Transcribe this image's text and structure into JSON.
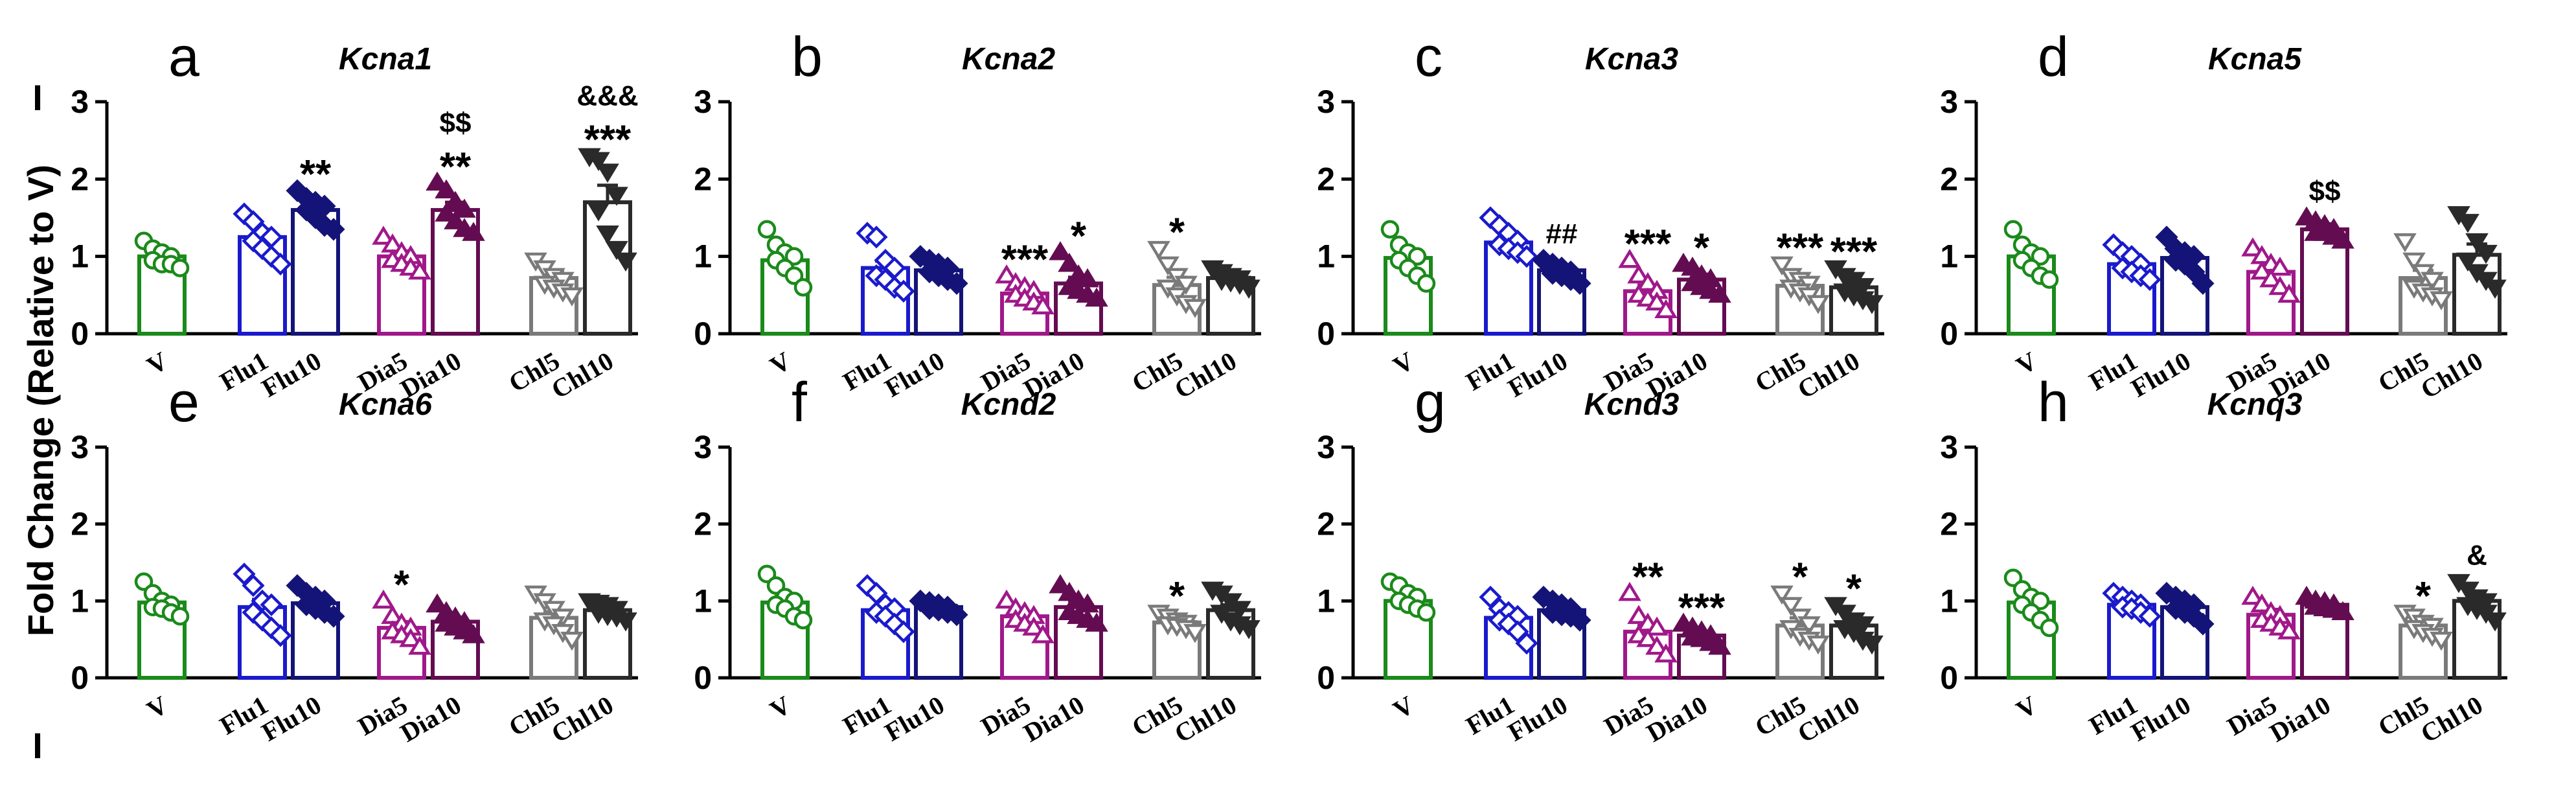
{
  "y_axis_label": "Fold Change (Relative to V)",
  "side_marks": [
    "I",
    "I"
  ],
  "groups": [
    "V",
    "Flu1",
    "Flu10",
    "Dia5",
    "Dia10",
    "Chl5",
    "Chl10"
  ],
  "group_styles": [
    {
      "color": "#1a8a1a",
      "marker": "circle-open"
    },
    {
      "color": "#1a1acc",
      "marker": "diamond-open"
    },
    {
      "color": "#141478",
      "marker": "diamond-filled"
    },
    {
      "color": "#a0188a",
      "marker": "triangle-open"
    },
    {
      "color": "#640c52",
      "marker": "triangle-filled"
    },
    {
      "color": "#7a7a7a",
      "marker": "triangle-down-open"
    },
    {
      "color": "#2a2a2a",
      "marker": "triangle-down-filled"
    }
  ],
  "chart_data": [
    {
      "panel": "a",
      "title": "Kcna1",
      "type": "bar",
      "ylim": [
        0,
        3
      ],
      "yticks": [
        "0",
        "1",
        "2",
        "3"
      ],
      "categories": [
        "V",
        "Flu1",
        "Flu10",
        "Dia5",
        "Dia10",
        "Chl5",
        "Chl10"
      ],
      "values": [
        1.0,
        1.25,
        1.6,
        1.0,
        1.6,
        0.72,
        1.7
      ],
      "sem": [
        0.06,
        0.1,
        0.08,
        0.07,
        0.1,
        0.1,
        0.22
      ],
      "points": [
        [
          1.2,
          1.1,
          1.05,
          1.0,
          0.95,
          0.9,
          0.9,
          0.85
        ],
        [
          1.55,
          1.45,
          1.3,
          1.25,
          1.2,
          1.1,
          1.0,
          0.9
        ],
        [
          1.85,
          1.75,
          1.7,
          1.65,
          1.6,
          1.5,
          1.4,
          1.35
        ],
        [
          1.25,
          1.15,
          1.05,
          1.0,
          0.95,
          0.9,
          0.85,
          0.8
        ],
        [
          1.95,
          1.85,
          1.7,
          1.6,
          1.55,
          1.45,
          1.35,
          1.3
        ],
        [
          0.95,
          0.85,
          0.75,
          0.7,
          0.65,
          0.6,
          0.55,
          0.5
        ],
        [
          2.3,
          2.25,
          2.1,
          1.8,
          1.6,
          1.3,
          1.1,
          0.95
        ]
      ],
      "annotations": [
        {
          "group": 2,
          "lines": [
            "**"
          ]
        },
        {
          "group": 4,
          "lines": [
            "$$",
            "**"
          ]
        },
        {
          "group": 6,
          "lines": [
            "&&&",
            "***"
          ]
        }
      ]
    },
    {
      "panel": "b",
      "title": "Kcna2",
      "type": "bar",
      "ylim": [
        0,
        3
      ],
      "yticks": [
        "0",
        "1",
        "2",
        "3"
      ],
      "categories": [
        "V",
        "Flu1",
        "Flu10",
        "Dia5",
        "Dia10",
        "Chl5",
        "Chl10"
      ],
      "values": [
        0.95,
        0.85,
        0.82,
        0.52,
        0.65,
        0.63,
        0.72
      ],
      "sem": [
        0.1,
        0.09,
        0.06,
        0.05,
        0.08,
        0.1,
        0.04
      ],
      "points": [
        [
          1.35,
          1.15,
          1.05,
          1.0,
          0.95,
          0.85,
          0.75,
          0.6
        ],
        [
          1.3,
          1.25,
          0.95,
          0.85,
          0.75,
          0.7,
          0.6,
          0.55
        ],
        [
          1.0,
          0.95,
          0.9,
          0.85,
          0.8,
          0.75,
          0.7,
          0.65
        ],
        [
          0.75,
          0.65,
          0.6,
          0.55,
          0.5,
          0.45,
          0.4,
          0.35
        ],
        [
          1.05,
          0.9,
          0.75,
          0.7,
          0.6,
          0.55,
          0.5,
          0.45
        ],
        [
          1.1,
          0.9,
          0.75,
          0.65,
          0.6,
          0.5,
          0.4,
          0.35
        ],
        [
          0.85,
          0.8,
          0.75,
          0.72,
          0.7,
          0.68,
          0.65,
          0.6
        ]
      ],
      "annotations": [
        {
          "group": 3,
          "lines": [
            "***"
          ]
        },
        {
          "group": 4,
          "lines": [
            "*"
          ]
        },
        {
          "group": 5,
          "lines": [
            "*"
          ]
        }
      ]
    },
    {
      "panel": "c",
      "title": "Kcna3",
      "type": "bar",
      "ylim": [
        0,
        3
      ],
      "yticks": [
        "0",
        "1",
        "2",
        "3"
      ],
      "categories": [
        "V",
        "Flu1",
        "Flu10",
        "Dia5",
        "Dia10",
        "Chl5",
        "Chl10"
      ],
      "values": [
        0.98,
        1.18,
        0.82,
        0.55,
        0.7,
        0.62,
        0.6
      ],
      "sem": [
        0.09,
        0.07,
        0.05,
        0.08,
        0.07,
        0.05,
        0.06
      ],
      "points": [
        [
          1.35,
          1.15,
          1.05,
          1.0,
          0.95,
          0.85,
          0.75,
          0.65
        ],
        [
          1.5,
          1.4,
          1.3,
          1.2,
          1.15,
          1.1,
          1.05,
          1.0
        ],
        [
          0.95,
          0.9,
          0.85,
          0.8,
          0.78,
          0.75,
          0.7,
          0.65
        ],
        [
          0.95,
          0.75,
          0.65,
          0.55,
          0.5,
          0.45,
          0.4,
          0.3
        ],
        [
          0.9,
          0.85,
          0.75,
          0.7,
          0.65,
          0.6,
          0.55,
          0.5
        ],
        [
          0.9,
          0.75,
          0.7,
          0.65,
          0.6,
          0.55,
          0.5,
          0.4
        ],
        [
          0.85,
          0.75,
          0.7,
          0.62,
          0.55,
          0.5,
          0.45,
          0.4
        ]
      ],
      "annotations": [
        {
          "group": 2,
          "lines": [
            "##"
          ]
        },
        {
          "group": 3,
          "lines": [
            "***"
          ]
        },
        {
          "group": 4,
          "lines": [
            "*"
          ]
        },
        {
          "group": 5,
          "lines": [
            "***"
          ]
        },
        {
          "group": 6,
          "lines": [
            "***"
          ]
        }
      ]
    },
    {
      "panel": "d",
      "title": "Kcna5",
      "type": "bar",
      "ylim": [
        0,
        3
      ],
      "yticks": [
        "0",
        "1",
        "2",
        "3"
      ],
      "categories": [
        "V",
        "Flu1",
        "Flu10",
        "Dia5",
        "Dia10",
        "Chl5",
        "Chl10"
      ],
      "values": [
        1.0,
        0.9,
        0.98,
        0.8,
        1.35,
        0.72,
        1.02
      ],
      "sem": [
        0.08,
        0.07,
        0.09,
        0.08,
        0.07,
        0.1,
        0.14
      ],
      "points": [
        [
          1.35,
          1.15,
          1.05,
          1.0,
          0.95,
          0.85,
          0.75,
          0.7
        ],
        [
          1.15,
          1.05,
          1.0,
          0.9,
          0.85,
          0.8,
          0.75,
          0.7
        ],
        [
          1.25,
          1.1,
          1.05,
          1.0,
          0.95,
          0.9,
          0.8,
          0.65
        ],
        [
          1.1,
          1.0,
          0.9,
          0.85,
          0.8,
          0.7,
          0.6,
          0.5
        ],
        [
          1.5,
          1.45,
          1.4,
          1.35,
          1.3,
          1.3,
          1.25,
          1.2
        ],
        [
          1.2,
          0.95,
          0.8,
          0.7,
          0.6,
          0.55,
          0.5,
          0.45
        ],
        [
          1.55,
          1.45,
          1.2,
          1.05,
          0.95,
          0.8,
          0.7,
          0.6
        ]
      ],
      "annotations": [
        {
          "group": 4,
          "lines": [
            "$$"
          ]
        }
      ]
    },
    {
      "panel": "e",
      "title": "Kcna6",
      "type": "bar",
      "ylim": [
        0,
        3
      ],
      "yticks": [
        "0",
        "1",
        "2",
        "3"
      ],
      "categories": [
        "V",
        "Flu1",
        "Flu10",
        "Dia5",
        "Dia10",
        "Chl5",
        "Chl10"
      ],
      "values": [
        0.98,
        0.92,
        0.97,
        0.65,
        0.73,
        0.78,
        0.88
      ],
      "sem": [
        0.06,
        0.1,
        0.07,
        0.08,
        0.06,
        0.08,
        0.05
      ],
      "points": [
        [
          1.25,
          1.1,
          1.0,
          0.95,
          0.92,
          0.9,
          0.85,
          0.8
        ],
        [
          1.35,
          1.2,
          1.0,
          0.95,
          0.85,
          0.75,
          0.65,
          0.55
        ],
        [
          1.2,
          1.1,
          1.05,
          1.0,
          0.95,
          0.9,
          0.85,
          0.8
        ],
        [
          1.0,
          0.8,
          0.7,
          0.65,
          0.6,
          0.55,
          0.5,
          0.4
        ],
        [
          0.95,
          0.85,
          0.78,
          0.72,
          0.7,
          0.65,
          0.6,
          0.55
        ],
        [
          1.1,
          1.0,
          0.9,
          0.8,
          0.75,
          0.7,
          0.6,
          0.5
        ],
        [
          1.0,
          0.98,
          0.95,
          0.9,
          0.85,
          0.82,
          0.8,
          0.75
        ]
      ],
      "annotations": [
        {
          "group": 3,
          "lines": [
            "*"
          ]
        }
      ]
    },
    {
      "panel": "f",
      "title": "Kcnd2",
      "type": "bar",
      "ylim": [
        0,
        3
      ],
      "yticks": [
        "0",
        "1",
        "2",
        "3"
      ],
      "categories": [
        "V",
        "Flu1",
        "Flu10",
        "Dia5",
        "Dia10",
        "Chl5",
        "Chl10"
      ],
      "values": [
        0.98,
        0.88,
        0.92,
        0.8,
        0.92,
        0.72,
        0.88
      ],
      "sem": [
        0.08,
        0.07,
        0.04,
        0.06,
        0.08,
        0.04,
        0.07
      ],
      "points": [
        [
          1.35,
          1.2,
          1.05,
          1.0,
          0.95,
          0.9,
          0.8,
          0.75
        ],
        [
          1.2,
          1.1,
          0.95,
          0.9,
          0.85,
          0.8,
          0.7,
          0.6
        ],
        [
          1.0,
          0.98,
          0.95,
          0.92,
          0.9,
          0.88,
          0.85,
          0.82
        ],
        [
          1.0,
          0.9,
          0.85,
          0.8,
          0.75,
          0.7,
          0.65,
          0.55
        ],
        [
          1.2,
          1.1,
          1.0,
          0.95,
          0.85,
          0.8,
          0.75,
          0.7
        ],
        [
          0.85,
          0.8,
          0.75,
          0.72,
          0.7,
          0.68,
          0.65,
          0.6
        ],
        [
          1.15,
          1.1,
          1.0,
          0.9,
          0.85,
          0.75,
          0.7,
          0.65
        ]
      ],
      "annotations": [
        {
          "group": 5,
          "lines": [
            "*"
          ]
        }
      ]
    },
    {
      "panel": "g",
      "title": "Kcnd3",
      "type": "bar",
      "ylim": [
        0,
        3
      ],
      "yticks": [
        "0",
        "1",
        "2",
        "3"
      ],
      "categories": [
        "V",
        "Flu1",
        "Flu10",
        "Dia5",
        "Dia10",
        "Chl5",
        "Chl10"
      ],
      "values": [
        1.0,
        0.78,
        0.88,
        0.6,
        0.55,
        0.68,
        0.68
      ],
      "sem": [
        0.06,
        0.08,
        0.05,
        0.08,
        0.04,
        0.1,
        0.08
      ],
      "points": [
        [
          1.25,
          1.2,
          1.1,
          1.05,
          1.0,
          0.95,
          0.9,
          0.85
        ],
        [
          1.05,
          0.9,
          0.85,
          0.8,
          0.75,
          0.7,
          0.6,
          0.45
        ],
        [
          1.05,
          1.0,
          0.95,
          0.9,
          0.85,
          0.82,
          0.8,
          0.75
        ],
        [
          1.1,
          0.8,
          0.7,
          0.65,
          0.55,
          0.5,
          0.4,
          0.3
        ],
        [
          0.7,
          0.65,
          0.6,
          0.55,
          0.52,
          0.5,
          0.45,
          0.4
        ],
        [
          1.1,
          0.95,
          0.8,
          0.7,
          0.65,
          0.55,
          0.5,
          0.45
        ],
        [
          0.95,
          0.85,
          0.75,
          0.7,
          0.65,
          0.6,
          0.5,
          0.45
        ]
      ],
      "annotations": [
        {
          "group": 3,
          "lines": [
            "**"
          ]
        },
        {
          "group": 4,
          "lines": [
            "***"
          ]
        },
        {
          "group": 5,
          "lines": [
            "*"
          ]
        },
        {
          "group": 6,
          "lines": [
            "*"
          ]
        }
      ]
    },
    {
      "panel": "h",
      "title": "Kcnq3",
      "type": "bar",
      "ylim": [
        0,
        3
      ],
      "yticks": [
        "0",
        "1",
        "2",
        "3"
      ],
      "categories": [
        "V",
        "Flu1",
        "Flu10",
        "Dia5",
        "Dia10",
        "Chl5",
        "Chl10"
      ],
      "values": [
        0.98,
        0.95,
        0.92,
        0.82,
        0.95,
        0.68,
        1.0
      ],
      "sem": [
        0.08,
        0.05,
        0.06,
        0.07,
        0.04,
        0.05,
        0.07
      ],
      "points": [
        [
          1.3,
          1.15,
          1.05,
          1.0,
          0.95,
          0.85,
          0.75,
          0.65
        ],
        [
          1.1,
          1.05,
          1.0,
          0.95,
          0.92,
          0.9,
          0.85,
          0.8
        ],
        [
          1.1,
          1.05,
          1.0,
          0.95,
          0.9,
          0.85,
          0.8,
          0.7
        ],
        [
          1.05,
          0.95,
          0.85,
          0.8,
          0.75,
          0.7,
          0.65,
          0.6
        ],
        [
          1.05,
          1.0,
          0.98,
          0.95,
          0.92,
          0.9,
          0.88,
          0.85
        ],
        [
          0.85,
          0.8,
          0.72,
          0.68,
          0.65,
          0.6,
          0.55,
          0.5
        ],
        [
          1.25,
          1.15,
          1.05,
          1.0,
          0.95,
          0.9,
          0.85,
          0.75
        ]
      ],
      "annotations": [
        {
          "group": 5,
          "lines": [
            "*"
          ]
        },
        {
          "group": 6,
          "lines": [
            "&"
          ]
        }
      ]
    }
  ]
}
